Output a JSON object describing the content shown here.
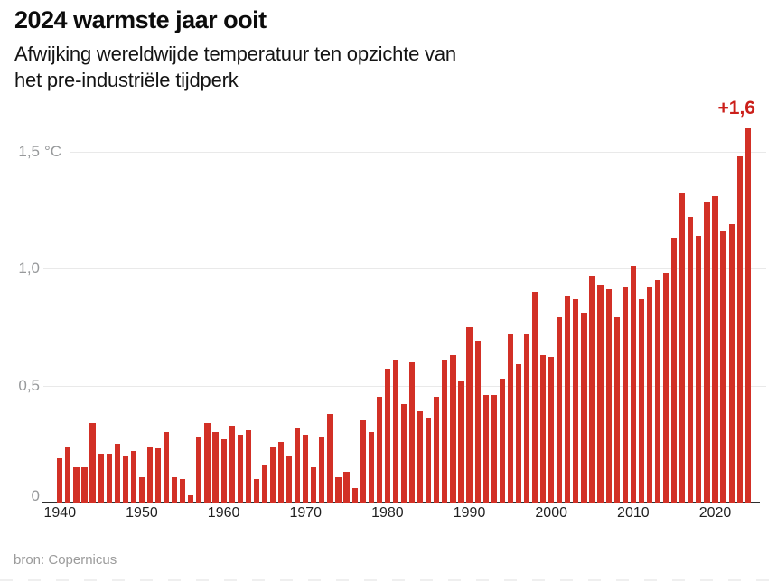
{
  "header": {
    "title": "2024 warmste jaar ooit",
    "subtitle_lines": [
      "Afwijking wereldwijde temperatuur ten opzichte van",
      "het pre-industriële tijdperk"
    ]
  },
  "source": {
    "text": "bron: Copernicus"
  },
  "colors": {
    "bar": "#d23026",
    "annotation": "#cb1f1a",
    "axis": "#2d2d2d",
    "grid": "#e9e9e9",
    "y_label": "#97999b",
    "x_label": "#1f1f1f"
  },
  "chart_data": {
    "type": "bar",
    "title": "2024 warmste jaar ooit",
    "subtitle": "Afwijking wereldwijde temperatuur ten opzichte van het pre-industriële tijdperk",
    "ylabel": "°C",
    "xlabel": "",
    "ylim": [
      0,
      1.65
    ],
    "grid": true,
    "y_ticks": [
      {
        "value": 0,
        "label": "0",
        "unit": ""
      },
      {
        "value": 0.5,
        "label": "0,5",
        "unit": ""
      },
      {
        "value": 1.0,
        "label": "1,0",
        "unit": ""
      },
      {
        "value": 1.5,
        "label": "1,5",
        "unit": "°C"
      }
    ],
    "x_ticks": [
      1940,
      1950,
      1960,
      1970,
      1980,
      1990,
      2000,
      2010,
      2020
    ],
    "years": [
      1940,
      1941,
      1942,
      1943,
      1944,
      1945,
      1946,
      1947,
      1948,
      1949,
      1950,
      1951,
      1952,
      1953,
      1954,
      1955,
      1956,
      1957,
      1958,
      1959,
      1960,
      1961,
      1962,
      1963,
      1964,
      1965,
      1966,
      1967,
      1968,
      1969,
      1970,
      1971,
      1972,
      1973,
      1974,
      1975,
      1976,
      1977,
      1978,
      1979,
      1980,
      1981,
      1982,
      1983,
      1984,
      1985,
      1986,
      1987,
      1988,
      1989,
      1990,
      1991,
      1992,
      1993,
      1994,
      1995,
      1996,
      1997,
      1998,
      1999,
      2000,
      2001,
      2002,
      2003,
      2004,
      2005,
      2006,
      2007,
      2008,
      2009,
      2010,
      2011,
      2012,
      2013,
      2014,
      2015,
      2016,
      2017,
      2018,
      2019,
      2020,
      2021,
      2022,
      2023,
      2024
    ],
    "values": [
      0.19,
      0.24,
      0.15,
      0.15,
      0.34,
      0.21,
      0.21,
      0.25,
      0.2,
      0.22,
      0.11,
      0.24,
      0.23,
      0.3,
      0.11,
      0.1,
      0.03,
      0.28,
      0.34,
      0.3,
      0.27,
      0.33,
      0.29,
      0.31,
      0.1,
      0.16,
      0.24,
      0.26,
      0.2,
      0.32,
      0.29,
      0.15,
      0.28,
      0.38,
      0.11,
      0.13,
      0.06,
      0.35,
      0.3,
      0.45,
      0.57,
      0.61,
      0.42,
      0.6,
      0.39,
      0.36,
      0.45,
      0.61,
      0.63,
      0.52,
      0.75,
      0.69,
      0.46,
      0.46,
      0.53,
      0.72,
      0.59,
      0.72,
      0.9,
      0.63,
      0.62,
      0.79,
      0.88,
      0.87,
      0.81,
      0.97,
      0.93,
      0.91,
      0.79,
      0.92,
      1.01,
      0.87,
      0.92,
      0.95,
      0.98,
      1.13,
      1.32,
      1.22,
      1.14,
      1.28,
      1.31,
      1.16,
      1.19,
      1.48,
      1.6
    ],
    "highlight": {
      "year": 2024,
      "value": 1.6,
      "label": "+1,6"
    },
    "legend": null
  }
}
